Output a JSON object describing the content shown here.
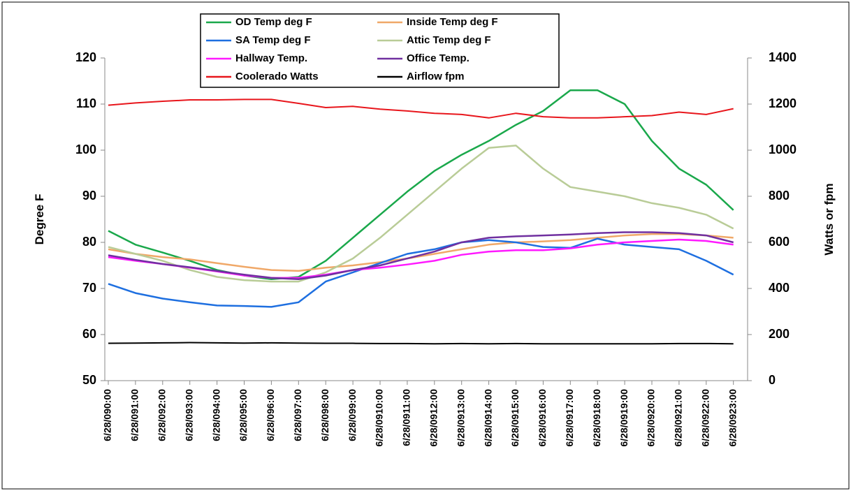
{
  "chart_data": {
    "type": "line",
    "ylabel": "Degree F",
    "y2label": "Watts or fpm",
    "categories": [
      "6/28/090:00",
      "6/28/091:00",
      "6/28/092:00",
      "6/28/093:00",
      "6/28/094:00",
      "6/28/095:00",
      "6/28/096:00",
      "6/28/097:00",
      "6/28/098:00",
      "6/28/099:00",
      "6/28/0910:00",
      "6/28/0911:00",
      "6/28/0912:00",
      "6/28/0913:00",
      "6/28/0914:00",
      "6/28/0915:00",
      "6/28/0916:00",
      "6/28/0917:00",
      "6/28/0918:00",
      "6/28/0919:00",
      "6/28/0920:00",
      "6/28/0921:00",
      "6/28/0922:00",
      "6/28/0923:00"
    ],
    "ylim": [
      50,
      120
    ],
    "yticks": [
      50,
      60,
      70,
      80,
      90,
      100,
      110,
      120
    ],
    "y2lim": [
      0,
      1400
    ],
    "y2ticks": [
      0,
      200,
      400,
      600,
      800,
      1000,
      1200,
      1400
    ],
    "grid": false,
    "legend": "top",
    "series": [
      {
        "name": "OD Temp deg F",
        "color": "#1aa84b",
        "values": [
          82.5,
          79.5,
          77.8,
          76,
          74,
          72.8,
          72,
          72.5,
          76,
          81,
          86,
          91,
          95.5,
          99,
          102,
          105.5,
          108.5,
          113,
          113,
          110,
          102,
          96,
          92.5,
          87
        ]
      },
      {
        "name": "Inside Temp deg F",
        "color": "#f0a868",
        "values": [
          78.5,
          77.5,
          76.8,
          76.3,
          75.5,
          74.7,
          74,
          73.8,
          74.5,
          75,
          75.7,
          76.5,
          77.5,
          78.5,
          79.5,
          80,
          80.2,
          80.5,
          81,
          81.5,
          81.8,
          81.8,
          81.5,
          81
        ]
      },
      {
        "name": "SA Temp deg F",
        "color": "#1e6fe0",
        "values": [
          71,
          69,
          67.8,
          67,
          66.3,
          66.2,
          66,
          67,
          71.5,
          73.5,
          75.5,
          77.5,
          78.5,
          80,
          80.5,
          80,
          79,
          78.8,
          80.8,
          79.5,
          79,
          78.5,
          76,
          73
        ]
      },
      {
        "name": "Attic Temp deg F",
        "color": "#b9cc97",
        "values": [
          79,
          77.5,
          76,
          74,
          72.5,
          71.8,
          71.5,
          71.5,
          73.5,
          76.5,
          81,
          86,
          91,
          96,
          100.5,
          101,
          96,
          92,
          91,
          90,
          88.5,
          87.5,
          86,
          83
        ]
      },
      {
        "name": "Hallway Temp.",
        "color": "#ff19ff",
        "values": [
          76.8,
          76,
          75.3,
          74.5,
          73.7,
          72.8,
          72.3,
          72.3,
          73,
          74,
          74.5,
          75.2,
          76,
          77.3,
          78,
          78.3,
          78.3,
          78.7,
          79.5,
          80,
          80.3,
          80.6,
          80.3,
          79.5
        ]
      },
      {
        "name": "Office Temp.",
        "color": "#7030a0",
        "values": [
          77.2,
          76.2,
          75.3,
          74.6,
          73.8,
          73,
          72.3,
          72,
          72.8,
          74,
          75,
          76.5,
          78,
          80,
          81,
          81.3,
          81.5,
          81.7,
          82,
          82.2,
          82.2,
          82,
          81.5,
          80
        ]
      },
      {
        "name": "Coolerado Watts",
        "color": "#e8161c",
        "axis": "y2",
        "values": [
          1195,
          1205,
          1212,
          1218,
          1218,
          1220,
          1220,
          1203,
          1185,
          1190,
          1178,
          1170,
          1160,
          1155,
          1140,
          1160,
          1145,
          1140,
          1140,
          1145,
          1150,
          1165,
          1155,
          1180
        ]
      },
      {
        "name": "Airflow fpm",
        "color": "#000000",
        "axis": "y2",
        "values": [
          162,
          163,
          164,
          165,
          164,
          163,
          164,
          163,
          162,
          162,
          161,
          161,
          160,
          161,
          160,
          161,
          160,
          160,
          160,
          160,
          160,
          161,
          161,
          160
        ]
      }
    ]
  }
}
